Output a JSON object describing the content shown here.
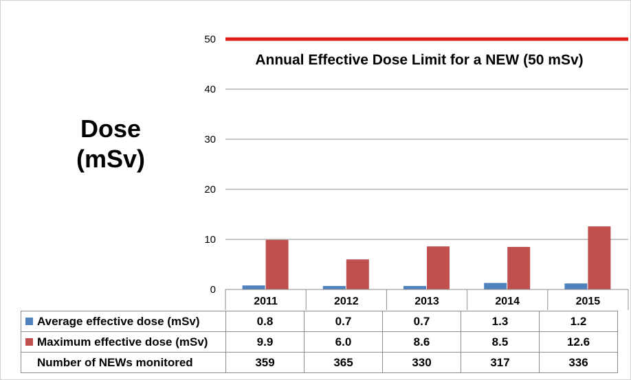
{
  "chart_data": {
    "type": "bar",
    "ylabel_lines": [
      "Dose",
      "(mSv)"
    ],
    "ylim": [
      0,
      50
    ],
    "yticks": [
      0,
      10,
      20,
      30,
      40,
      50
    ],
    "grid": true,
    "categories": [
      "2011",
      "2012",
      "2013",
      "2014",
      "2015"
    ],
    "series": [
      {
        "name": "Average effective dose (mSv)",
        "color": "#4f81bd",
        "values": [
          0.8,
          0.7,
          0.7,
          1.3,
          1.2
        ]
      },
      {
        "name": "Maximum effective dose (mSv)",
        "color": "#c0504d",
        "values": [
          9.9,
          6.0,
          8.6,
          8.5,
          12.6
        ]
      }
    ],
    "reference_line": {
      "value": 50,
      "label": "Annual Effective Dose Limit for a NEW (50 mSv)",
      "color": "#e31b1b"
    },
    "table": {
      "rows": [
        {
          "label": "Average effective dose (mSv)",
          "key_color": "#4f81bd",
          "cells": [
            "0.8",
            "0.7",
            "0.7",
            "1.3",
            "1.2"
          ]
        },
        {
          "label": "Maximum effective dose (mSv)",
          "key_color": "#c0504d",
          "cells": [
            "9.9",
            "6.0",
            "8.6",
            "8.5",
            "12.6"
          ]
        },
        {
          "label": "Number of NEWs monitored",
          "key_color": "",
          "cells": [
            "359",
            "365",
            "330",
            "317",
            "336"
          ]
        }
      ]
    }
  }
}
